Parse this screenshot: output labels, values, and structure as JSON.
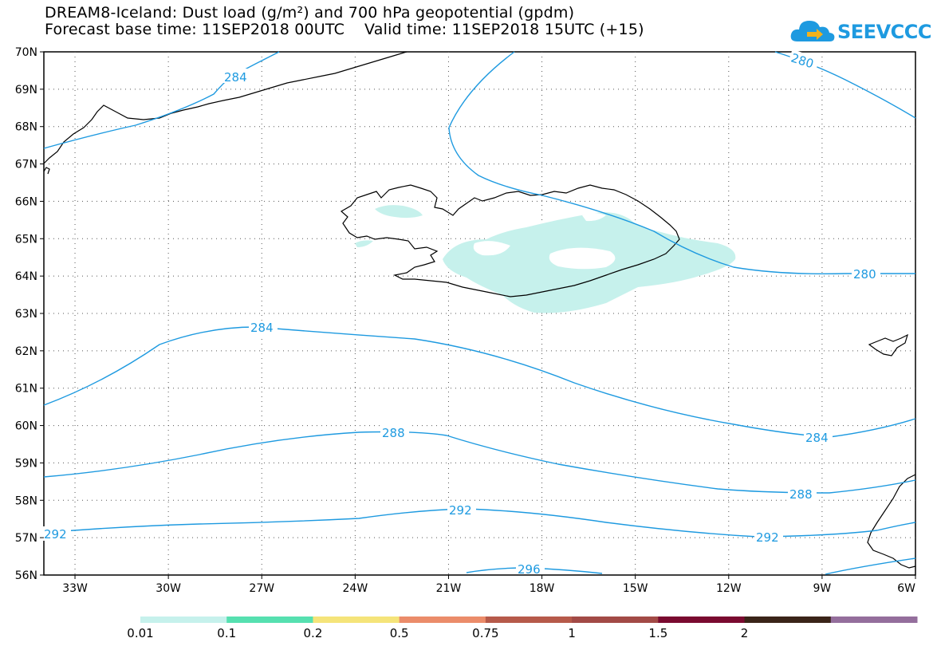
{
  "title": {
    "line1": "DREAM8-Iceland: Dust load (g/m²) and 700 hPa geopotential (gpdm)",
    "line2": "Forecast base time: 11SEP2018 00UTC    Valid time: 11SEP2018 15UTC (+15)"
  },
  "logo": {
    "text": "SEEVCCC",
    "icon": "cloud-icon"
  },
  "map": {
    "lon_range": [
      -34,
      -6
    ],
    "lat_range": [
      56,
      70
    ],
    "lon_ticks": [
      "33W",
      "30W",
      "27W",
      "24W",
      "21W",
      "18W",
      "15W",
      "12W",
      "9W",
      "6W"
    ],
    "lat_ticks": [
      "70N",
      "69N",
      "68N",
      "67N",
      "66N",
      "65N",
      "64N",
      "63N",
      "62N",
      "61N",
      "60N",
      "59N",
      "58N",
      "57N",
      "56N"
    ],
    "grid": "dotted",
    "land_outline_color": "#000000",
    "contour_color": "#1e9ae0",
    "dust_fill_color": "#c6f1ec",
    "contour_labels": [
      {
        "text": "284"
      },
      {
        "text": "280"
      },
      {
        "text": "280"
      },
      {
        "text": "284"
      },
      {
        "text": "284"
      },
      {
        "text": "288"
      },
      {
        "text": "288"
      },
      {
        "text": "292"
      },
      {
        "text": "292"
      },
      {
        "text": "292"
      },
      {
        "text": "296"
      }
    ]
  },
  "colorbar": {
    "colors": [
      "#c6f1ec",
      "#56e0b0",
      "#f5e47a",
      "#eb8c6a",
      "#b65a4a",
      "#a24a46",
      "#7a0a30",
      "#3a2418",
      "#946e9c"
    ],
    "labels": [
      "0.01",
      "0.1",
      "0.2",
      "0.5",
      "0.75",
      "1",
      "1.5",
      "2"
    ]
  }
}
